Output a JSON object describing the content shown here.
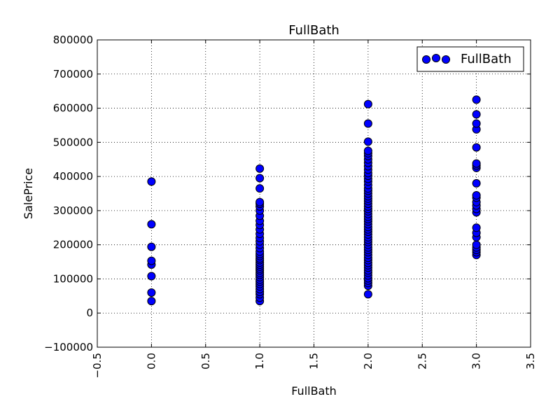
{
  "chart_data": {
    "type": "scatter",
    "title": "FullBath",
    "xlabel": "FullBath",
    "ylabel": "SalePrice",
    "xlim": [
      -0.5,
      3.5
    ],
    "ylim": [
      -100000,
      800000
    ],
    "xticks": [
      -0.5,
      0.0,
      0.5,
      1.0,
      1.5,
      2.0,
      2.5,
      3.0,
      3.5
    ],
    "xtick_labels": [
      "−0.5",
      "0.0",
      "0.5",
      "1.0",
      "1.5",
      "2.0",
      "2.5",
      "3.0",
      "3.5"
    ],
    "yticks": [
      -100000,
      0,
      100000,
      200000,
      300000,
      400000,
      500000,
      600000,
      700000,
      800000
    ],
    "ytick_labels": [
      "−100000",
      "0",
      "100000",
      "200000",
      "300000",
      "400000",
      "500000",
      "600000",
      "700000",
      "800000"
    ],
    "grid": true,
    "legend_position": "top-right",
    "colors": {
      "marker_fill": "#0000ff",
      "marker_edge": "#000000"
    },
    "series": [
      {
        "name": "FullBath",
        "points": [
          [
            0,
            35000
          ],
          [
            0,
            60000
          ],
          [
            0,
            108000
          ],
          [
            0,
            142000
          ],
          [
            0,
            153000
          ],
          [
            0,
            194000
          ],
          [
            0,
            260000
          ],
          [
            0,
            385000
          ],
          [
            1,
            35000
          ],
          [
            1,
            45000
          ],
          [
            1,
            55000
          ],
          [
            1,
            62000
          ],
          [
            1,
            70000
          ],
          [
            1,
            78000
          ],
          [
            1,
            85000
          ],
          [
            1,
            92000
          ],
          [
            1,
            98000
          ],
          [
            1,
            105000
          ],
          [
            1,
            112000
          ],
          [
            1,
            118000
          ],
          [
            1,
            125000
          ],
          [
            1,
            130000
          ],
          [
            1,
            136000
          ],
          [
            1,
            142000
          ],
          [
            1,
            148000
          ],
          [
            1,
            155000
          ],
          [
            1,
            160000
          ],
          [
            1,
            167000
          ],
          [
            1,
            173000
          ],
          [
            1,
            180000
          ],
          [
            1,
            190000
          ],
          [
            1,
            200000
          ],
          [
            1,
            210000
          ],
          [
            1,
            220000
          ],
          [
            1,
            232000
          ],
          [
            1,
            245000
          ],
          [
            1,
            258000
          ],
          [
            1,
            270000
          ],
          [
            1,
            285000
          ],
          [
            1,
            300000
          ],
          [
            1,
            312000
          ],
          [
            1,
            320000
          ],
          [
            1,
            325000
          ],
          [
            1,
            365000
          ],
          [
            1,
            395000
          ],
          [
            1,
            423000
          ],
          [
            2,
            55000
          ],
          [
            2,
            80000
          ],
          [
            2,
            88000
          ],
          [
            2,
            95000
          ],
          [
            2,
            102000
          ],
          [
            2,
            110000
          ],
          [
            2,
            118000
          ],
          [
            2,
            125000
          ],
          [
            2,
            133000
          ],
          [
            2,
            140000
          ],
          [
            2,
            147000
          ],
          [
            2,
            155000
          ],
          [
            2,
            162000
          ],
          [
            2,
            170000
          ],
          [
            2,
            178000
          ],
          [
            2,
            185000
          ],
          [
            2,
            192000
          ],
          [
            2,
            200000
          ],
          [
            2,
            208000
          ],
          [
            2,
            215000
          ],
          [
            2,
            222000
          ],
          [
            2,
            230000
          ],
          [
            2,
            238000
          ],
          [
            2,
            245000
          ],
          [
            2,
            252000
          ],
          [
            2,
            260000
          ],
          [
            2,
            268000
          ],
          [
            2,
            275000
          ],
          [
            2,
            282000
          ],
          [
            2,
            290000
          ],
          [
            2,
            298000
          ],
          [
            2,
            305000
          ],
          [
            2,
            312000
          ],
          [
            2,
            320000
          ],
          [
            2,
            328000
          ],
          [
            2,
            335000
          ],
          [
            2,
            342000
          ],
          [
            2,
            350000
          ],
          [
            2,
            358000
          ],
          [
            2,
            365000
          ],
          [
            2,
            375000
          ],
          [
            2,
            385000
          ],
          [
            2,
            393000
          ],
          [
            2,
            402000
          ],
          [
            2,
            410000
          ],
          [
            2,
            420000
          ],
          [
            2,
            430000
          ],
          [
            2,
            440000
          ],
          [
            2,
            450000
          ],
          [
            2,
            460000
          ],
          [
            2,
            468000
          ],
          [
            2,
            475000
          ],
          [
            2,
            502000
          ],
          [
            2,
            555000
          ],
          [
            2,
            612000
          ],
          [
            3,
            170000
          ],
          [
            3,
            178000
          ],
          [
            3,
            185000
          ],
          [
            3,
            192000
          ],
          [
            3,
            200000
          ],
          [
            3,
            222000
          ],
          [
            3,
            235000
          ],
          [
            3,
            250000
          ],
          [
            3,
            295000
          ],
          [
            3,
            305000
          ],
          [
            3,
            315000
          ],
          [
            3,
            325000
          ],
          [
            3,
            338000
          ],
          [
            3,
            345000
          ],
          [
            3,
            380000
          ],
          [
            3,
            425000
          ],
          [
            3,
            432000
          ],
          [
            3,
            438000
          ],
          [
            3,
            485000
          ],
          [
            3,
            538000
          ],
          [
            3,
            555000
          ],
          [
            3,
            582000
          ],
          [
            3,
            625000
          ]
        ]
      }
    ]
  }
}
